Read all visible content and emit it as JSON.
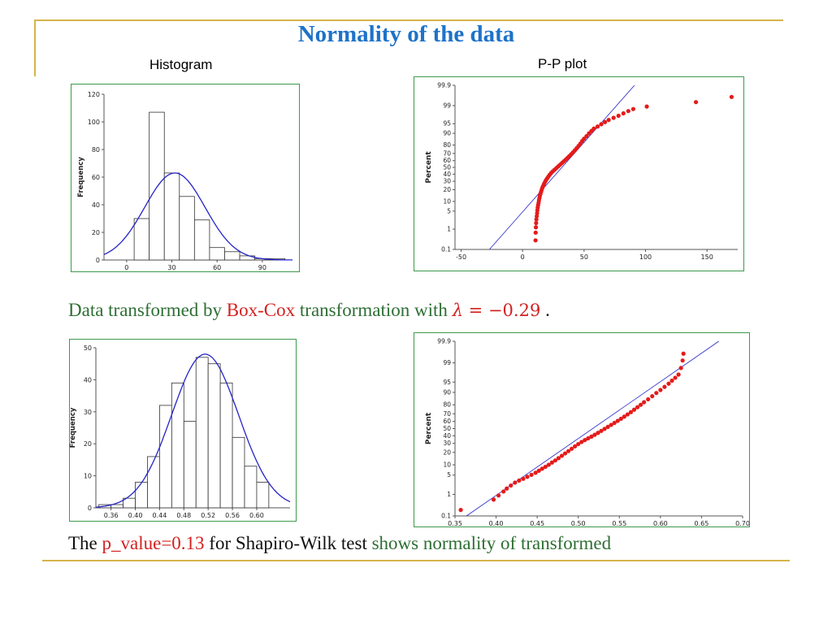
{
  "header": {
    "title": "Normality of the data",
    "histogram_label": "Histogram",
    "pp_label": "P-P plot"
  },
  "caption1": {
    "part1": "Data transformed by ",
    "part2": "Box-Cox",
    "part3": " transformation with ",
    "lambda_symbol": "λ",
    "lambda_value": " = −0.29",
    "end": " ."
  },
  "caption2": {
    "part1": "The ",
    "part2": "p_value=0.13",
    "part3": " for Shapiro-Wilk test ",
    "part4": "shows normality of transformed"
  },
  "colors": {
    "accent": "#1e72c8",
    "rule": "#d4b44a",
    "frame": "#3d9a4d",
    "fit_line": "#2323c8",
    "points": "#e41b1b",
    "caption_green": "#2e6e34",
    "caption_red": "#d42020"
  },
  "chart_data": [
    {
      "type": "bar",
      "ylabel": "Frequency",
      "xlim": [
        -15,
        110
      ],
      "ylim": [
        0,
        120
      ],
      "yticks": [
        0,
        20,
        40,
        60,
        80,
        100,
        120
      ],
      "xticks": [
        0,
        30,
        60,
        90
      ],
      "bin_edges": [
        -15,
        5,
        15,
        25,
        35,
        45,
        55,
        65,
        75,
        85,
        95,
        105
      ],
      "values": [
        0,
        30,
        107,
        63,
        46,
        29,
        9,
        6,
        3,
        1,
        1
      ],
      "curve": {
        "mean": 32,
        "sd": 20,
        "peak": 63
      }
    },
    {
      "type": "scatter",
      "ylabel": "Percent",
      "xlim": [
        -55,
        175
      ],
      "xticks": [
        -50,
        0,
        50,
        100,
        150
      ],
      "yticks": [
        0.1,
        1,
        5,
        10,
        20,
        30,
        40,
        50,
        60,
        70,
        80,
        90,
        95,
        99,
        99.9
      ],
      "fit_line": {
        "x": [
          -27,
          91
        ],
        "y": [
          0.1,
          99.9
        ]
      },
      "points": [
        [
          10.5,
          0.3
        ],
        [
          10.6,
          0.7
        ],
        [
          10.8,
          1.2
        ],
        [
          11,
          1.8
        ],
        [
          11.2,
          2.5
        ],
        [
          11.5,
          3.3
        ],
        [
          11.8,
          4.2
        ],
        [
          12,
          5.3
        ],
        [
          12.3,
          6.5
        ],
        [
          12.6,
          7.8
        ],
        [
          13,
          9.2
        ],
        [
          13.3,
          10.8
        ],
        [
          13.7,
          12.5
        ],
        [
          14,
          14.2
        ],
        [
          14.5,
          16
        ],
        [
          15,
          17.8
        ],
        [
          15.5,
          19.8
        ],
        [
          16,
          22
        ],
        [
          16.7,
          24.2
        ],
        [
          17.4,
          26.5
        ],
        [
          18.2,
          29
        ],
        [
          19,
          31.5
        ],
        [
          20,
          34
        ],
        [
          21,
          36.5
        ],
        [
          22,
          39
        ],
        [
          23.2,
          41.5
        ],
        [
          24.5,
          44
        ],
        [
          26,
          46.5
        ],
        [
          27.5,
          49
        ],
        [
          29,
          51.5
        ],
        [
          30.5,
          54
        ],
        [
          32,
          56.5
        ],
        [
          33.5,
          59
        ],
        [
          35,
          61.5
        ],
        [
          36.5,
          64
        ],
        [
          38,
          66.5
        ],
        [
          39.5,
          69
        ],
        [
          41,
          71.5
        ],
        [
          42.5,
          74
        ],
        [
          44,
          76.5
        ],
        [
          45.5,
          79
        ],
        [
          47,
          81.5
        ],
        [
          48.5,
          84
        ],
        [
          50,
          86
        ],
        [
          52,
          88
        ],
        [
          54,
          90
        ],
        [
          56,
          91.5
        ],
        [
          58,
          92.8
        ],
        [
          61,
          93.8
        ],
        [
          64,
          94.8
        ],
        [
          67,
          95.6
        ],
        [
          70,
          96.3
        ],
        [
          74,
          96.9
        ],
        [
          78,
          97.4
        ],
        [
          82,
          97.9
        ],
        [
          86,
          98.3
        ],
        [
          90,
          98.6
        ],
        [
          101,
          98.9
        ],
        [
          141,
          99.3
        ],
        [
          170,
          99.6
        ]
      ]
    },
    {
      "type": "bar",
      "ylabel": "Frequency",
      "xlim": [
        0.335,
        0.655
      ],
      "ylim": [
        0,
        50
      ],
      "yticks": [
        0,
        10,
        20,
        30,
        40,
        50
      ],
      "xticks": [
        0.36,
        0.4,
        0.44,
        0.48,
        0.52,
        0.56,
        0.6
      ],
      "xtick_labels": [
        "0.36",
        "0.40",
        "0.44",
        "0.48",
        "0.52",
        "0.56",
        "0.60"
      ],
      "bin_edges": [
        0.34,
        0.36,
        0.38,
        0.4,
        0.42,
        0.44,
        0.46,
        0.48,
        0.5,
        0.52,
        0.54,
        0.56,
        0.58,
        0.6,
        0.62,
        0.64
      ],
      "values": [
        1,
        1,
        3,
        8,
        16,
        32,
        39,
        27,
        47,
        45,
        39,
        22,
        13,
        8,
        0
      ],
      "curve": {
        "mean": 0.515,
        "sd": 0.055,
        "peak": 48
      }
    },
    {
      "type": "scatter",
      "ylabel": "Percent",
      "xlim": [
        0.35,
        0.7
      ],
      "xticks": [
        0.35,
        0.4,
        0.45,
        0.5,
        0.55,
        0.6,
        0.65,
        0.7
      ],
      "xtick_labels": [
        "0.35",
        "0.40",
        "0.45",
        "0.50",
        "0.55",
        "0.60",
        "0.65",
        "0.70"
      ],
      "yticks": [
        0.1,
        1,
        5,
        10,
        20,
        30,
        40,
        50,
        60,
        70,
        80,
        90,
        95,
        99,
        99.9
      ],
      "fit_line": {
        "x": [
          0.364,
          0.671
        ],
        "y": [
          0.1,
          99.9
        ]
      },
      "points": [
        [
          0.357,
          0.2
        ],
        [
          0.397,
          0.6
        ],
        [
          0.403,
          0.9
        ],
        [
          0.409,
          1.3
        ],
        [
          0.413,
          1.7
        ],
        [
          0.418,
          2.2
        ],
        [
          0.423,
          2.8
        ],
        [
          0.428,
          3.3
        ],
        [
          0.433,
          3.8
        ],
        [
          0.438,
          4.4
        ],
        [
          0.443,
          5.1
        ],
        [
          0.448,
          5.9
        ],
        [
          0.452,
          6.8
        ],
        [
          0.456,
          7.8
        ],
        [
          0.46,
          8.8
        ],
        [
          0.464,
          10
        ],
        [
          0.468,
          11.5
        ],
        [
          0.472,
          13
        ],
        [
          0.476,
          14.8
        ],
        [
          0.48,
          16.8
        ],
        [
          0.484,
          19
        ],
        [
          0.488,
          21.3
        ],
        [
          0.492,
          23.8
        ],
        [
          0.496,
          26.5
        ],
        [
          0.5,
          29.2
        ],
        [
          0.504,
          31.8
        ],
        [
          0.508,
          34.2
        ],
        [
          0.512,
          36.5
        ],
        [
          0.516,
          38.8
        ],
        [
          0.52,
          41.3
        ],
        [
          0.524,
          44
        ],
        [
          0.528,
          46.8
        ],
        [
          0.532,
          49.6
        ],
        [
          0.536,
          52.4
        ],
        [
          0.54,
          55.2
        ],
        [
          0.544,
          58
        ],
        [
          0.548,
          60.8
        ],
        [
          0.552,
          63.6
        ],
        [
          0.556,
          66.4
        ],
        [
          0.56,
          69.2
        ],
        [
          0.564,
          72
        ],
        [
          0.568,
          74.8
        ],
        [
          0.572,
          77.5
        ],
        [
          0.576,
          80
        ],
        [
          0.58,
          82.5
        ],
        [
          0.585,
          85
        ],
        [
          0.59,
          87.4
        ],
        [
          0.595,
          89.6
        ],
        [
          0.6,
          91.4
        ],
        [
          0.605,
          93
        ],
        [
          0.61,
          94.4
        ],
        [
          0.614,
          95.5
        ],
        [
          0.618,
          96.4
        ],
        [
          0.622,
          97.2
        ],
        [
          0.625,
          98.4
        ],
        [
          0.627,
          99.2
        ],
        [
          0.628,
          99.6
        ]
      ]
    }
  ]
}
